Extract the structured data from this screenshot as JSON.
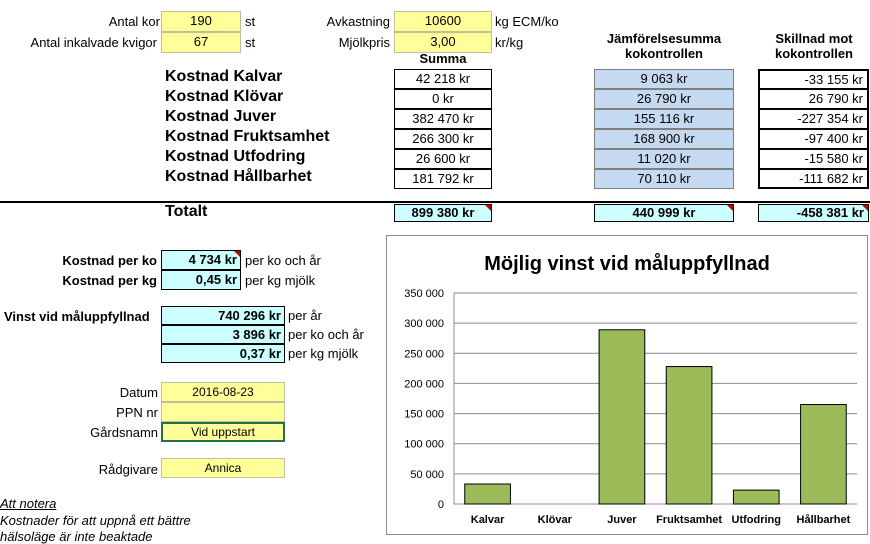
{
  "top": {
    "antal_kor_label": "Antal kor",
    "antal_kor_value": "190",
    "antal_kor_unit": "st",
    "kvigor_label": "Antal inkalvade kvigor",
    "kvigor_value": "67",
    "kvigor_unit": "st",
    "avkastning_label": "Avkastning",
    "avkastning_value": "10600",
    "avkastning_unit": "kg ECM/ko",
    "mjolkpris_label": "Mjölkpris",
    "mjolkpris_value": "3,00",
    "mjolkpris_unit": "kr/kg"
  },
  "headers": {
    "summa": "Summa",
    "jamforelse_line1": "Jämförelsesumma",
    "jamforelse_line2": "kokontrollen",
    "skillnad_line1": "Skillnad mot",
    "skillnad_line2": "kokontrollen"
  },
  "rows": [
    {
      "label": "Kostnad Kalvar",
      "summa": "42 218 kr",
      "jamf": "9 063 kr",
      "skillnad": "-33 155 kr"
    },
    {
      "label": "Kostnad Klövar",
      "summa": "0 kr",
      "jamf": "26 790 kr",
      "skillnad": "26 790 kr"
    },
    {
      "label": "Kostnad Juver",
      "summa": "382 470 kr",
      "jamf": "155 116 kr",
      "skillnad": "-227 354 kr"
    },
    {
      "label": "Kostnad Fruktsamhet",
      "summa": "266 300 kr",
      "jamf": "168 900 kr",
      "skillnad": "-97 400 kr"
    },
    {
      "label": "Kostnad Utfodring",
      "summa": "26 600 kr",
      "jamf": "11 020 kr",
      "skillnad": "-15 580 kr"
    },
    {
      "label": "Kostnad Hållbarhet",
      "summa": "181 792 kr",
      "jamf": "70 110 kr",
      "skillnad": "-111 682 kr"
    }
  ],
  "totalt": {
    "label": "Totalt",
    "summa": "899 380 kr",
    "jamf": "440 999 kr",
    "skillnad": "-458 381 kr"
  },
  "kostnad": {
    "per_ko_label": "Kostnad per ko",
    "per_ko_value": "4 734 kr",
    "per_ko_unit": "per ko och år",
    "per_kg_label": "Kostnad per kg",
    "per_kg_value": "0,45 kr",
    "per_kg_unit": "per kg mjölk"
  },
  "vinst": {
    "label": "Vinst vid måluppfyllnad",
    "per_ar_value": "740 296 kr",
    "per_ar_unit": "per år",
    "per_ko_value": "3 896 kr",
    "per_ko_unit": "per ko och år",
    "per_kg_value": "0,37 kr",
    "per_kg_unit": "per kg mjölk"
  },
  "info": {
    "datum_label": "Datum",
    "datum_value": "2016-08-23",
    "ppn_label": "PPN nr",
    "ppn_value": "",
    "gard_label": "Gårdsnamn",
    "gard_value": "Vid uppstart",
    "radgivare_label": "Rådgivare",
    "radgivare_value": "Annica"
  },
  "notes": {
    "title": "Att notera",
    "line1": "Kostnader för att uppnå ett bättre",
    "line2": "hälsoläge är inte beaktade"
  },
  "colors": {
    "bar": "#9bbb59",
    "bar_border": "#000000",
    "yellow": "#ffff99",
    "cyan": "#ccffff",
    "blue": "#c5d9f1"
  },
  "chart_data": {
    "type": "bar",
    "title": "Möjlig vinst vid måluppfyllnad",
    "categories": [
      "Kalvar",
      "Klövar",
      "Juver",
      "Fruktsamhet",
      "Utfodring",
      "Hållbarhet"
    ],
    "values": [
      33155,
      0,
      289000,
      228000,
      23000,
      165000
    ],
    "ylim": [
      0,
      350000
    ],
    "yticks": [
      "0",
      "50 000",
      "100 000",
      "150 000",
      "200 000",
      "250 000",
      "300 000",
      "350 000"
    ],
    "grid": true,
    "legend": "none"
  }
}
